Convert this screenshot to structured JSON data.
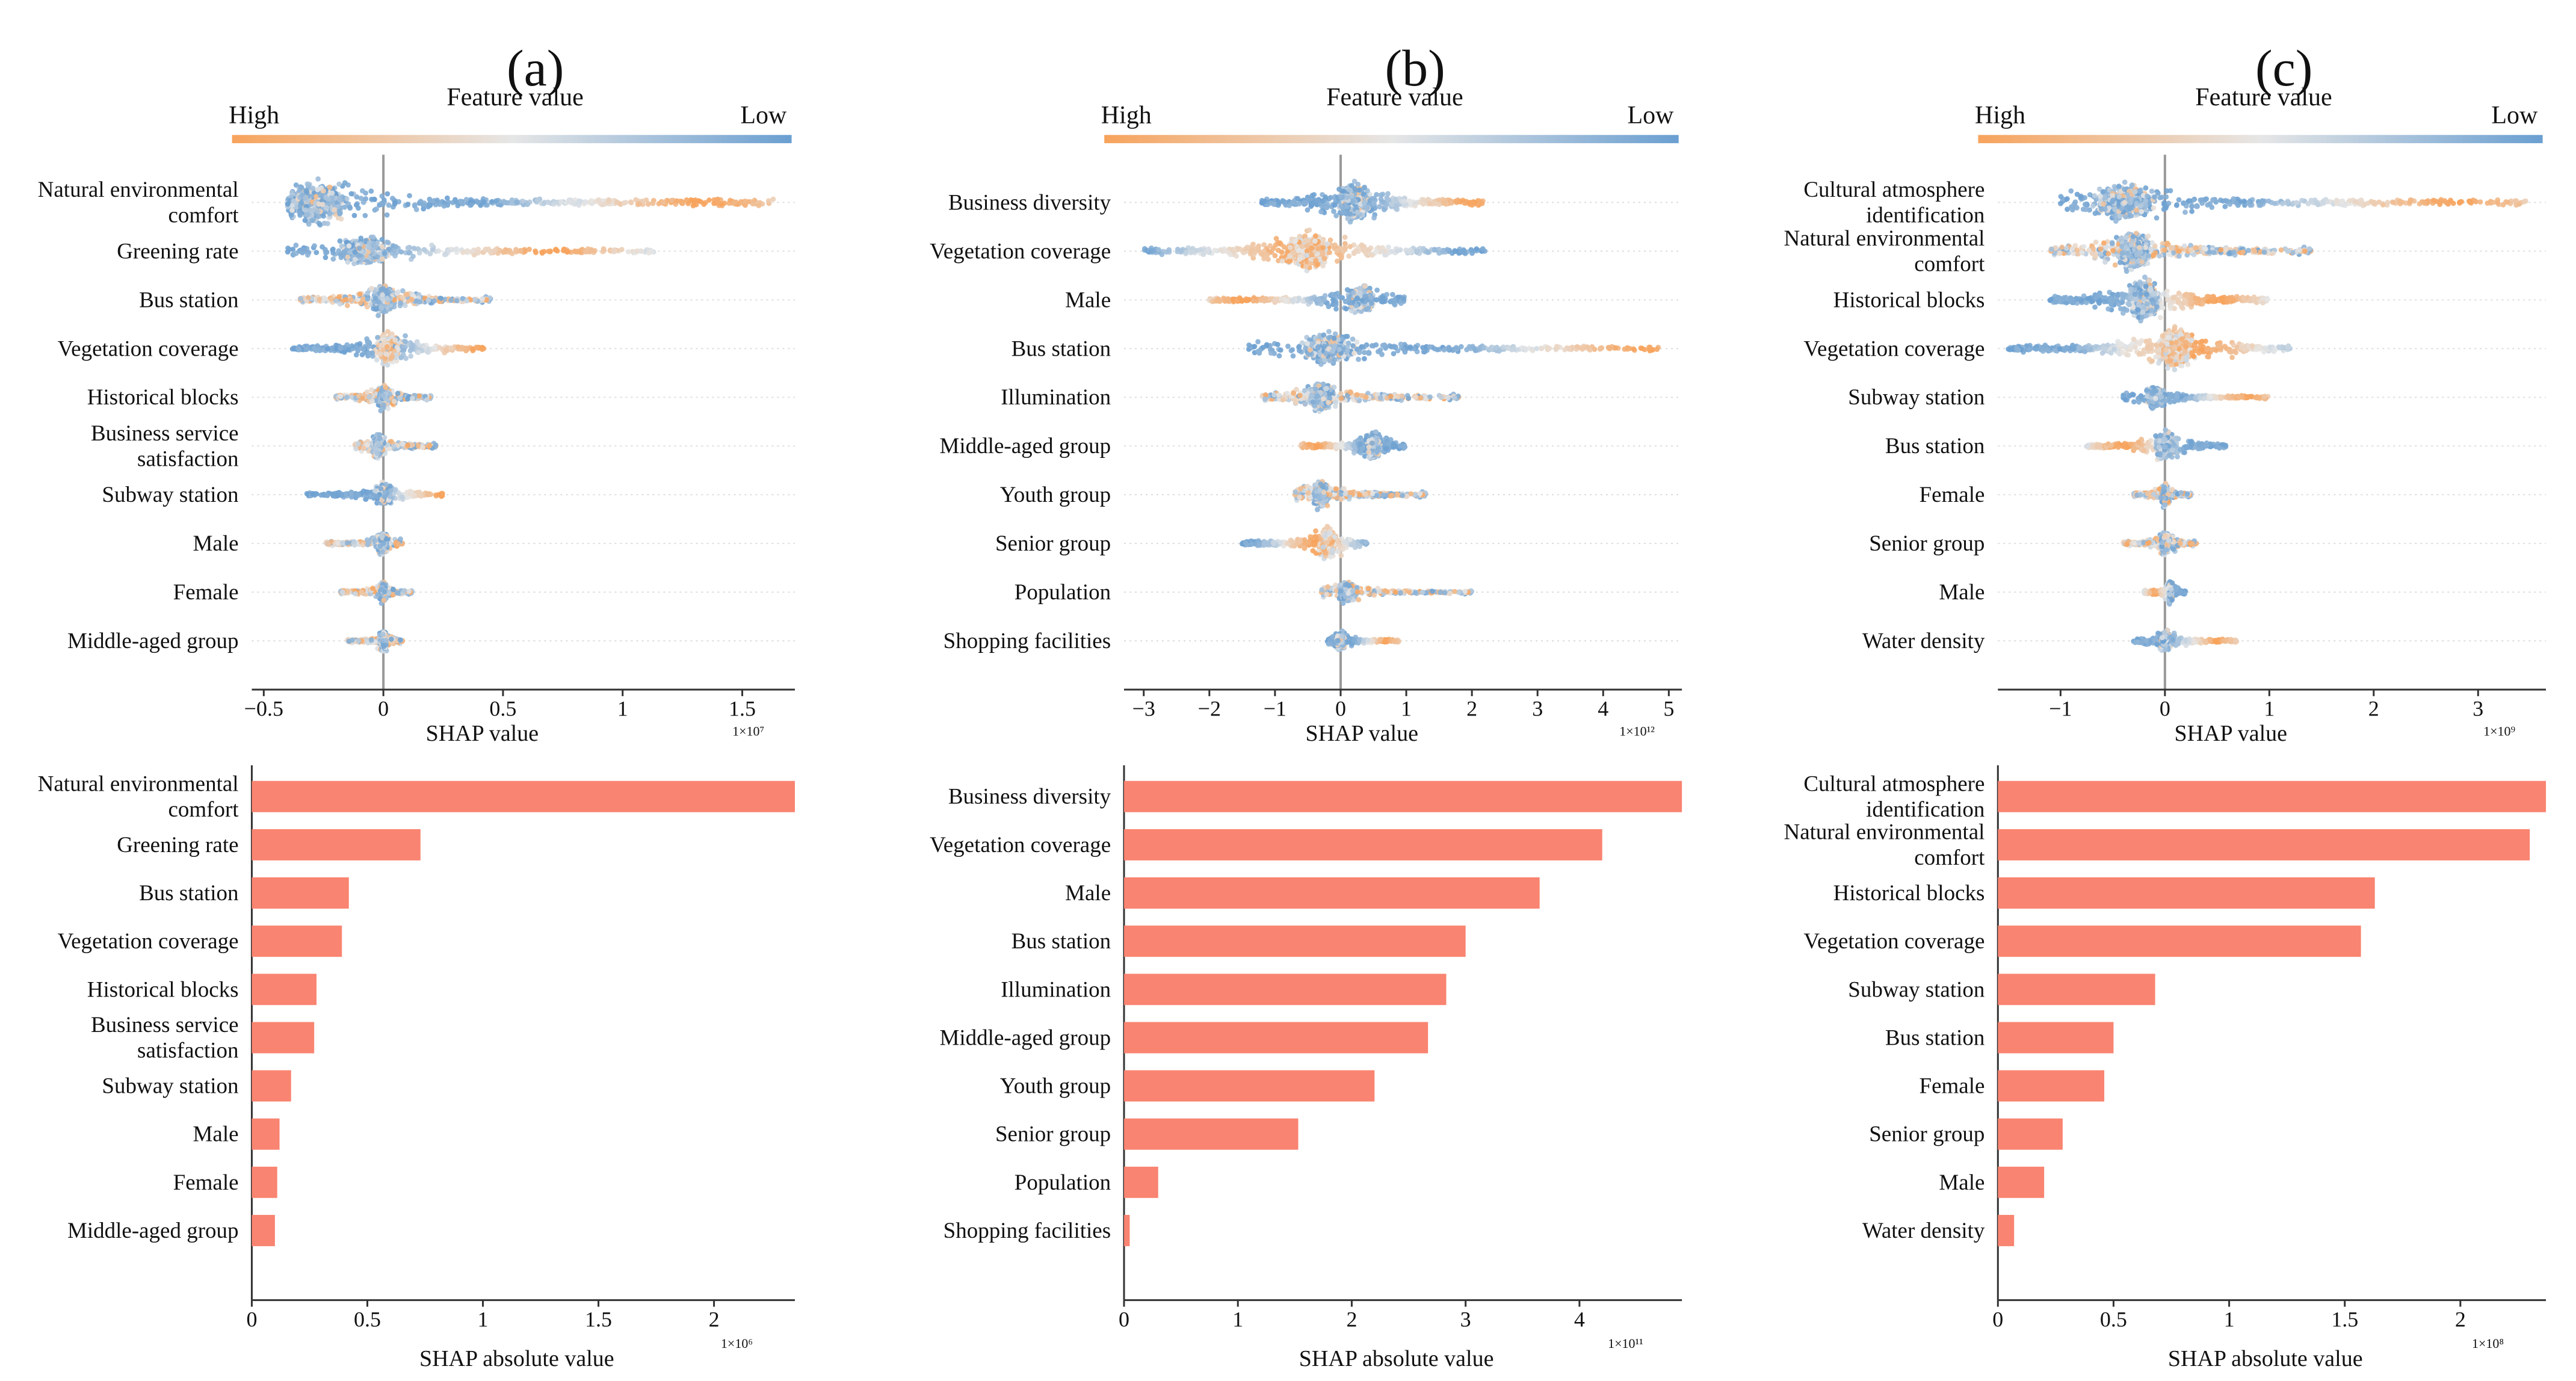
{
  "colors": {
    "high": "#f7a35c",
    "mid": "#e6e6e6",
    "low": "#6a9fd1",
    "bar": "#f98471"
  },
  "colorbar": {
    "high_label": "High",
    "low_label": "Low",
    "title": "Feature value"
  },
  "chart_data": [
    {
      "label": "(a)",
      "beeswarm": {
        "type": "scatter",
        "xlabel": "SHAP value",
        "scale": "1×10⁷",
        "xlim": [
          -0.55,
          1.72
        ],
        "xticks": [
          -0.5,
          0,
          0.5,
          1,
          1.5
        ],
        "xticklabels": [
          "−0.5",
          "0",
          "0.5",
          "1",
          "1.5"
        ],
        "features": [
          {
            "name": [
              "Natural environmental",
              "comfort"
            ],
            "xmin": -0.4,
            "xmax": 1.63,
            "hi": 1.35,
            "dens": 1.0,
            "mode": "posHigh",
            "cluster": -0.28
          },
          {
            "name": [
              "Greening rate"
            ],
            "xmin": -0.4,
            "xmax": 1.15,
            "hi": 0.7,
            "dens": 0.55,
            "mode": "posHigh",
            "cluster": -0.08
          },
          {
            "name": [
              "Bus station"
            ],
            "xmin": -0.35,
            "xmax": 0.45,
            "hi": 0.45,
            "dens": 0.6,
            "mode": "mixed",
            "cluster": 0.0
          },
          {
            "name": [
              "Vegetation coverage"
            ],
            "xmin": -0.38,
            "xmax": 0.42,
            "hi": 0.4,
            "dens": 0.6,
            "mode": "center",
            "cluster": 0.02
          },
          {
            "name": [
              "Historical blocks"
            ],
            "xmin": -0.2,
            "xmax": 0.2,
            "hi": 0.2,
            "dens": 0.45,
            "mode": "mixed",
            "cluster": 0.0
          },
          {
            "name": [
              "Business service",
              "satisfaction"
            ],
            "xmin": -0.12,
            "xmax": 0.22,
            "hi": 0.2,
            "dens": 0.45,
            "mode": "mixed",
            "cluster": -0.02
          },
          {
            "name": [
              "Subway station"
            ],
            "xmin": -0.32,
            "xmax": 0.26,
            "hi": 0.25,
            "dens": 0.3,
            "mode": "posHigh",
            "cluster": 0.0
          },
          {
            "name": [
              "Male"
            ],
            "xmin": -0.24,
            "xmax": 0.08,
            "hi": 0.08,
            "dens": 0.35,
            "mode": "mixed",
            "cluster": 0.0
          },
          {
            "name": [
              "Female"
            ],
            "xmin": -0.18,
            "xmax": 0.12,
            "hi": 0.12,
            "dens": 0.3,
            "mode": "mixed",
            "cluster": 0.0
          },
          {
            "name": [
              "Middle-aged group"
            ],
            "xmin": -0.15,
            "xmax": 0.08,
            "hi": 0.08,
            "dens": 0.3,
            "mode": "mixed",
            "cluster": 0.0
          }
        ]
      },
      "bars": {
        "type": "bar",
        "xlabel": "SHAP absolute value",
        "scale": "1×10⁶",
        "xlim": [
          0,
          2.35
        ],
        "xticks": [
          0,
          0.5,
          1,
          1.5,
          2
        ],
        "xticklabels": [
          "0",
          "0.5",
          "1",
          "1.5",
          "2"
        ],
        "categories": [
          [
            "Natural environmental",
            "comfort"
          ],
          [
            "Greening rate"
          ],
          [
            "Bus station"
          ],
          [
            "Vegetation coverage"
          ],
          [
            "Historical blocks"
          ],
          [
            "Business service",
            "satisfaction"
          ],
          [
            "Subway station"
          ],
          [
            "Male"
          ],
          [
            "Female"
          ],
          [
            "Middle-aged group"
          ]
        ],
        "values": [
          2.35,
          0.73,
          0.42,
          0.39,
          0.28,
          0.27,
          0.17,
          0.12,
          0.11,
          0.1
        ]
      }
    },
    {
      "label": "(b)",
      "beeswarm": {
        "type": "scatter",
        "xlabel": "SHAP value",
        "scale": "1×10¹²",
        "xlim": [
          -3.3,
          5.2
        ],
        "xticks": [
          -3,
          -2,
          -1,
          0,
          1,
          2,
          3,
          4,
          5
        ],
        "xticklabels": [
          "−3",
          "−2",
          "−1",
          "0",
          "1",
          "2",
          "3",
          "4",
          "5"
        ],
        "features": [
          {
            "name": [
              "Business diversity"
            ],
            "xmin": -1.2,
            "xmax": 2.2,
            "hi": 2.0,
            "dens": 0.85,
            "mode": "posHigh",
            "cluster": 0.2
          },
          {
            "name": [
              "Vegetation coverage"
            ],
            "xmin": -3.0,
            "xmax": 2.2,
            "hi": -0.6,
            "dens": 0.8,
            "mode": "highLeft",
            "cluster": -0.5
          },
          {
            "name": [
              "Male"
            ],
            "xmin": -2.0,
            "xmax": 1.0,
            "hi": -1.5,
            "dens": 0.55,
            "mode": "negHigh",
            "cluster": 0.3
          },
          {
            "name": [
              "Bus station"
            ],
            "xmin": -1.4,
            "xmax": 4.9,
            "hi": 4.6,
            "dens": 0.6,
            "mode": "posHigh",
            "cluster": -0.2
          },
          {
            "name": [
              "Illumination"
            ],
            "xmin": -1.2,
            "xmax": 1.8,
            "hi": 1.5,
            "dens": 0.6,
            "mode": "mixed",
            "cluster": -0.3
          },
          {
            "name": [
              "Middle-aged group"
            ],
            "xmin": -0.6,
            "xmax": 1.0,
            "hi": -0.4,
            "dens": 0.55,
            "mode": "negHigh",
            "cluster": 0.5
          },
          {
            "name": [
              "Youth group"
            ],
            "xmin": -0.7,
            "xmax": 1.3,
            "hi": 0.8,
            "dens": 0.55,
            "mode": "mixed",
            "cluster": -0.3
          },
          {
            "name": [
              "Senior group"
            ],
            "xmin": -1.5,
            "xmax": 0.4,
            "hi": -0.4,
            "dens": 0.6,
            "mode": "center",
            "cluster": -0.2
          },
          {
            "name": [
              "Population"
            ],
            "xmin": -0.3,
            "xmax": 2.0,
            "hi": 0.3,
            "dens": 0.3,
            "mode": "mixed",
            "cluster": 0.1
          },
          {
            "name": [
              "Shopping facilities"
            ],
            "xmin": -0.2,
            "xmax": 0.9,
            "hi": 0.7,
            "dens": 0.25,
            "mode": "posHigh",
            "cluster": 0.0
          }
        ]
      },
      "bars": {
        "type": "bar",
        "xlabel": "SHAP absolute value",
        "scale": "1×10¹¹",
        "xlim": [
          0,
          4.9
        ],
        "xticks": [
          0,
          1,
          2,
          3,
          4
        ],
        "xticklabels": [
          "0",
          "1",
          "2",
          "3",
          "4"
        ],
        "categories": [
          [
            "Business diversity"
          ],
          [
            "Vegetation coverage"
          ],
          [
            "Male"
          ],
          [
            "Bus station"
          ],
          [
            "Illumination"
          ],
          [
            "Middle-aged group"
          ],
          [
            "Youth group"
          ],
          [
            "Senior group"
          ],
          [
            "Population"
          ],
          [
            "Shopping facilities"
          ]
        ],
        "values": [
          4.9,
          4.2,
          3.65,
          3.0,
          2.83,
          2.67,
          2.2,
          1.53,
          0.3,
          0.05
        ]
      }
    },
    {
      "label": "(c)",
      "beeswarm": {
        "type": "scatter",
        "xlabel": "SHAP value",
        "scale": "1×10⁹",
        "xlim": [
          -1.6,
          3.65
        ],
        "xticks": [
          -1,
          0,
          1,
          2,
          3
        ],
        "xticklabels": [
          "−1",
          "0",
          "1",
          "2",
          "3"
        ],
        "features": [
          {
            "name": [
              "Cultural atmosphere",
              "identification"
            ],
            "xmin": -1.0,
            "xmax": 3.5,
            "hi": 2.8,
            "dens": 0.8,
            "mode": "posHigh",
            "cluster": -0.4
          },
          {
            "name": [
              "Natural environmental",
              "comfort"
            ],
            "xmin": -1.1,
            "xmax": 1.4,
            "hi": 0.5,
            "dens": 0.9,
            "mode": "mixed",
            "cluster": -0.3
          },
          {
            "name": [
              "Historical blocks"
            ],
            "xmin": -1.1,
            "xmax": 1.0,
            "hi": 0.5,
            "dens": 0.95,
            "mode": "posHigh",
            "cluster": -0.2
          },
          {
            "name": [
              "Vegetation coverage"
            ],
            "xmin": -1.5,
            "xmax": 1.2,
            "hi": 0.3,
            "dens": 0.9,
            "mode": "center",
            "cluster": 0.1
          },
          {
            "name": [
              "Subway station"
            ],
            "xmin": -0.4,
            "xmax": 1.0,
            "hi": 0.8,
            "dens": 0.3,
            "mode": "posHigh",
            "cluster": -0.1
          },
          {
            "name": [
              "Bus station"
            ],
            "xmin": -0.75,
            "xmax": 0.6,
            "hi": -0.4,
            "dens": 0.55,
            "mode": "negHigh",
            "cluster": 0.0
          },
          {
            "name": [
              "Female"
            ],
            "xmin": -0.3,
            "xmax": 0.25,
            "hi": 0.2,
            "dens": 0.4,
            "mode": "mixed",
            "cluster": 0.0
          },
          {
            "name": [
              "Senior group"
            ],
            "xmin": -0.4,
            "xmax": 0.3,
            "hi": -0.2,
            "dens": 0.4,
            "mode": "mixed",
            "cluster": 0.0
          },
          {
            "name": [
              "Male"
            ],
            "xmin": -0.2,
            "xmax": 0.2,
            "hi": -0.1,
            "dens": 0.35,
            "mode": "negHigh",
            "cluster": 0.05
          },
          {
            "name": [
              "Water density"
            ],
            "xmin": -0.3,
            "xmax": 0.7,
            "hi": 0.5,
            "dens": 0.3,
            "mode": "posHigh",
            "cluster": 0.0
          }
        ]
      },
      "bars": {
        "type": "bar",
        "xlabel": "SHAP absolute value",
        "scale": "1×10⁸",
        "xlim": [
          0,
          2.37
        ],
        "xticks": [
          0,
          0.5,
          1,
          1.5,
          2
        ],
        "xticklabels": [
          "0",
          "0.5",
          "1",
          "1.5",
          "2"
        ],
        "categories": [
          [
            "Cultural atmosphere",
            "identification"
          ],
          [
            "Natural environmental",
            "comfort"
          ],
          [
            "Historical blocks"
          ],
          [
            "Vegetation coverage"
          ],
          [
            "Subway station"
          ],
          [
            "Bus station"
          ],
          [
            "Female"
          ],
          [
            "Senior group"
          ],
          [
            "Male"
          ],
          [
            "Water density"
          ]
        ],
        "values": [
          2.37,
          2.3,
          1.63,
          1.57,
          0.68,
          0.5,
          0.46,
          0.28,
          0.2,
          0.07
        ]
      }
    }
  ]
}
